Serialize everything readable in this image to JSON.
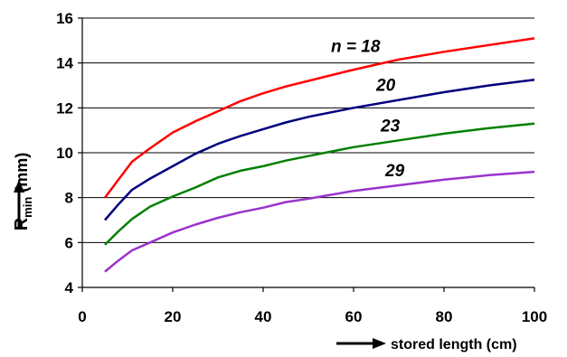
{
  "chart_data": {
    "type": "line",
    "xlabel": "stored length (cm)",
    "ylabel": {
      "main": "R",
      "sub": "min",
      "unit": " (mm)"
    },
    "xlim": [
      0,
      100
    ],
    "ylim": [
      4,
      16
    ],
    "xticks": [
      0,
      20,
      40,
      60,
      80,
      100
    ],
    "yticks": [
      4,
      6,
      8,
      10,
      12,
      14,
      16
    ],
    "grid": "horizontal",
    "legend": "none",
    "series": [
      {
        "name": "n = 18",
        "color": "#ff0000",
        "x": [
          5,
          8,
          11,
          15,
          20,
          25,
          30,
          35,
          40,
          45,
          50,
          60,
          70,
          80,
          90,
          100
        ],
        "y": [
          8.0,
          8.8,
          9.6,
          10.2,
          10.9,
          11.4,
          11.85,
          12.3,
          12.65,
          12.95,
          13.2,
          13.7,
          14.15,
          14.5,
          14.8,
          15.1
        ]
      },
      {
        "name": "20",
        "color": "#00007f",
        "x": [
          5,
          8,
          11,
          15,
          20,
          25,
          30,
          35,
          40,
          45,
          50,
          60,
          70,
          80,
          90,
          100
        ],
        "y": [
          7.0,
          7.7,
          8.35,
          8.85,
          9.4,
          9.95,
          10.4,
          10.75,
          11.05,
          11.35,
          11.6,
          12.0,
          12.35,
          12.7,
          13.0,
          13.25
        ]
      },
      {
        "name": "23",
        "color": "#008000",
        "x": [
          5,
          8,
          11,
          15,
          20,
          25,
          30,
          35,
          40,
          45,
          50,
          60,
          70,
          80,
          90,
          100
        ],
        "y": [
          5.9,
          6.5,
          7.05,
          7.6,
          8.05,
          8.45,
          8.9,
          9.2,
          9.4,
          9.65,
          9.85,
          10.25,
          10.55,
          10.85,
          11.1,
          11.3
        ]
      },
      {
        "name": "29",
        "color": "#9933cc",
        "x": [
          5,
          8,
          11,
          15,
          20,
          25,
          30,
          35,
          40,
          45,
          50,
          60,
          70,
          80,
          90,
          100
        ],
        "y": [
          4.7,
          5.2,
          5.65,
          6.0,
          6.45,
          6.8,
          7.1,
          7.35,
          7.55,
          7.8,
          7.95,
          8.3,
          8.55,
          8.8,
          9.0,
          9.15
        ]
      }
    ],
    "annotations": [
      {
        "text": "n = 18",
        "x": 55,
        "y": 14.5
      },
      {
        "text": "20",
        "x": 65,
        "y": 12.75
      },
      {
        "text": "23",
        "x": 66,
        "y": 10.95
      },
      {
        "text": "29",
        "x": 67,
        "y": 8.95
      }
    ]
  }
}
